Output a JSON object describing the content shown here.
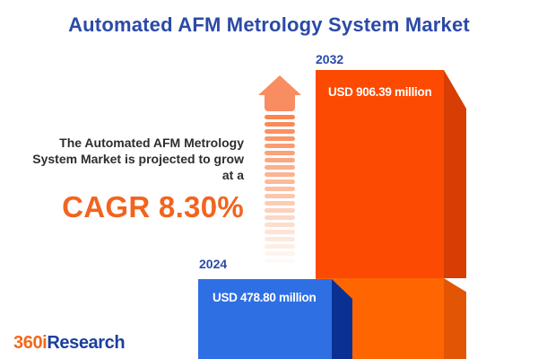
{
  "title": "Automated AFM Metrology System Market",
  "description": {
    "lines": [
      "The Automated AFM Metrology",
      "System Market is projected to grow",
      "at a"
    ],
    "cagr": "CAGR 8.30%"
  },
  "bars": [
    {
      "year": "2024",
      "value": 478.8,
      "value_label": "USD 478.80 million",
      "face_color": "#2E6FE4",
      "side_color": "#0A3093"
    },
    {
      "year": "2032",
      "value": 906.39,
      "value_label": "USD 906.39 million",
      "face_color": "#FC4A02",
      "side_color": "#D83E03",
      "overlap_face_color": "#FF6602",
      "overlap_side_color": "#E25504"
    }
  ],
  "logo": {
    "prefix": "360i",
    "suffix": "Research",
    "prefix_color": "#F4681E",
    "suffix_color": "#1C3F9E"
  },
  "colors": {
    "title_blue": "#2B4AA8",
    "cagr_orange": "#F2641F",
    "text_dark": "#2D2D2D",
    "arrow_orange": "#F98D62",
    "background": "#FFFFFF"
  },
  "chart_data": {
    "type": "bar",
    "categories": [
      "2024",
      "2032"
    ],
    "values": [
      478.8,
      906.39
    ],
    "unit": "USD million",
    "value_labels": [
      "USD 478.80 million",
      "USD 906.39 million"
    ],
    "bar_colors": [
      "#2E6FE4",
      "#FC4A02"
    ],
    "title": "Automated AFM Metrology System Market",
    "annotations": [
      "The Automated AFM Metrology System Market is projected to grow at a CAGR 8.30%"
    ],
    "cagr_percent": 8.3,
    "xlabel": "",
    "ylabel": "",
    "legend": "none",
    "grid": false,
    "axes_hidden": true
  }
}
